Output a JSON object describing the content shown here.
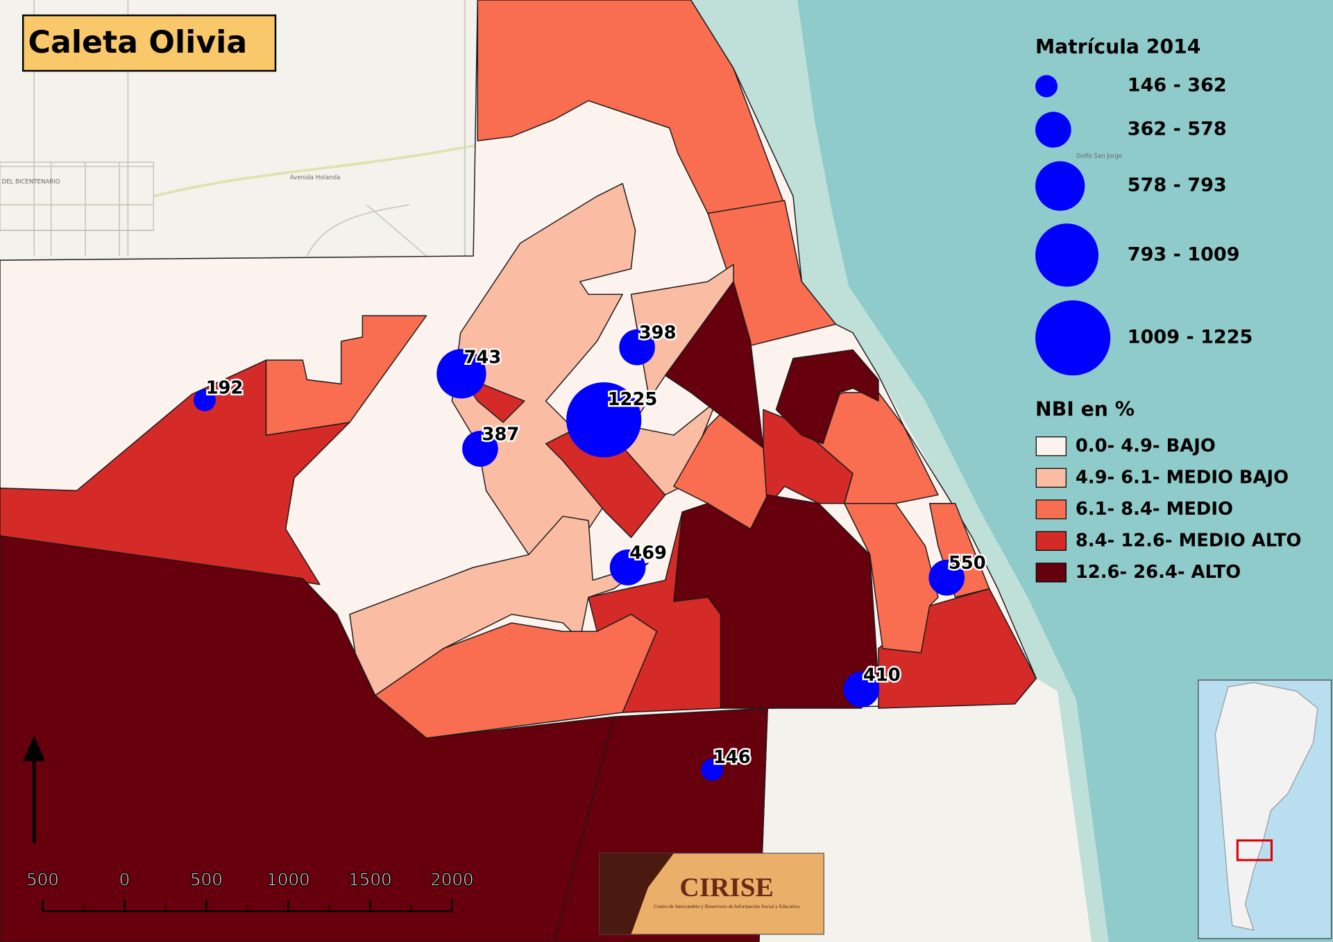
{
  "title": "Caleta Olivia",
  "legend_circles": {
    "title": "Matrícula 2014",
    "classes": [
      {
        "min": 146,
        "max": 362,
        "label": "146 - 362"
      },
      {
        "min": 362,
        "max": 578,
        "label": "362 - 578"
      },
      {
        "min": 578,
        "max": 793,
        "label": "578 - 793"
      },
      {
        "min": 793,
        "max": 1009,
        "label": "793 - 1009"
      },
      {
        "min": 1009,
        "max": 1225,
        "label": "1009 - 1225"
      }
    ],
    "color": "#0000ff"
  },
  "legend_nbi": {
    "title": "NBI en %",
    "classes": [
      {
        "label": "0.0- 4.9- BAJO",
        "color": "#fdf3ee"
      },
      {
        "label": "4.9- 6.1- MEDIO BAJO",
        "color": "#fbbca4"
      },
      {
        "label": "6.1- 8.4- MEDIO",
        "color": "#f96d50"
      },
      {
        "label": "8.4- 12.6- MEDIO ALTO",
        "color": "#d42a28"
      },
      {
        "label": "12.6- 26.4- ALTO",
        "color": "#67000d"
      }
    ]
  },
  "schools": {
    "values": [
      743,
      192,
      398,
      1225,
      387,
      469,
      550,
      410,
      146
    ]
  },
  "scale_bar": {
    "labels": [
      "500",
      "0",
      "500",
      "1000",
      "1500",
      "2000"
    ]
  },
  "logo": {
    "name": "CIRISE",
    "subtitle": "Centro de Intercambio y Reservorio de Información Social y Educativa"
  },
  "base_map_labels": [
    "Avenida Holanda",
    "DEL BICENTENARIO",
    "Golfo San Jorge"
  ]
}
